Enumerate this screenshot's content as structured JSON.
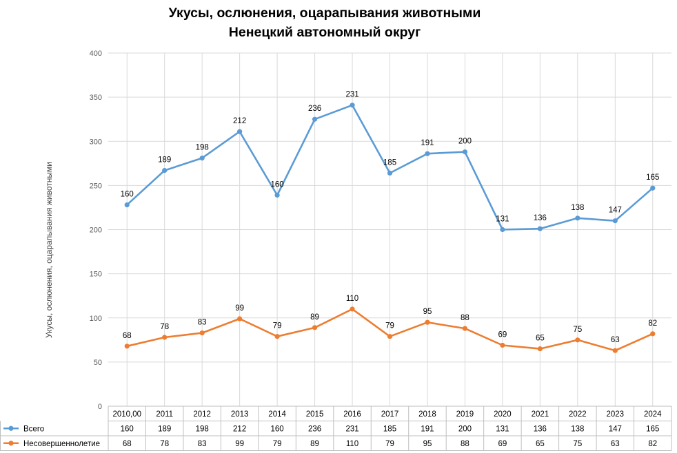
{
  "chart_data": {
    "type": "line",
    "title": "Укусы, ослюнения, оцарапывания животными",
    "subtitle": "Ненецкий автономный округ",
    "xlabel": "",
    "ylabel": "Укусы, ослюнения, оцарапывания животными",
    "ylim": [
      0,
      400
    ],
    "yticks": [
      "0",
      "50",
      "100",
      "150",
      "200",
      "250",
      "300",
      "350",
      "400"
    ],
    "categories": [
      "2010,00",
      "2011",
      "2012",
      "2013",
      "2014",
      "2015",
      "2016",
      "2017",
      "2018",
      "2019",
      "2020",
      "2021",
      "2022",
      "2023",
      "2024"
    ],
    "series": [
      {
        "name": "Всего",
        "color": "#5b9bd5",
        "plotted": [
          228,
          267,
          281,
          311,
          239,
          325,
          341,
          264,
          286,
          288,
          200,
          201,
          213,
          210,
          247
        ],
        "labels": [
          "160",
          "189",
          "198",
          "212",
          "160",
          "236",
          "231",
          "185",
          "191",
          "200",
          "131",
          "136",
          "138",
          "147",
          "165"
        ]
      },
      {
        "name": "Несовершеннолетие",
        "color": "#ed7d31",
        "plotted": [
          68,
          78,
          83,
          99,
          79,
          89,
          110,
          79,
          95,
          88,
          69,
          65,
          75,
          63,
          82
        ],
        "labels": [
          "68",
          "78",
          "83",
          "99",
          "79",
          "89",
          "110",
          "79",
          "95",
          "88",
          "69",
          "65",
          "75",
          "63",
          "82"
        ]
      }
    ],
    "grid": true,
    "legend": "data-table"
  }
}
